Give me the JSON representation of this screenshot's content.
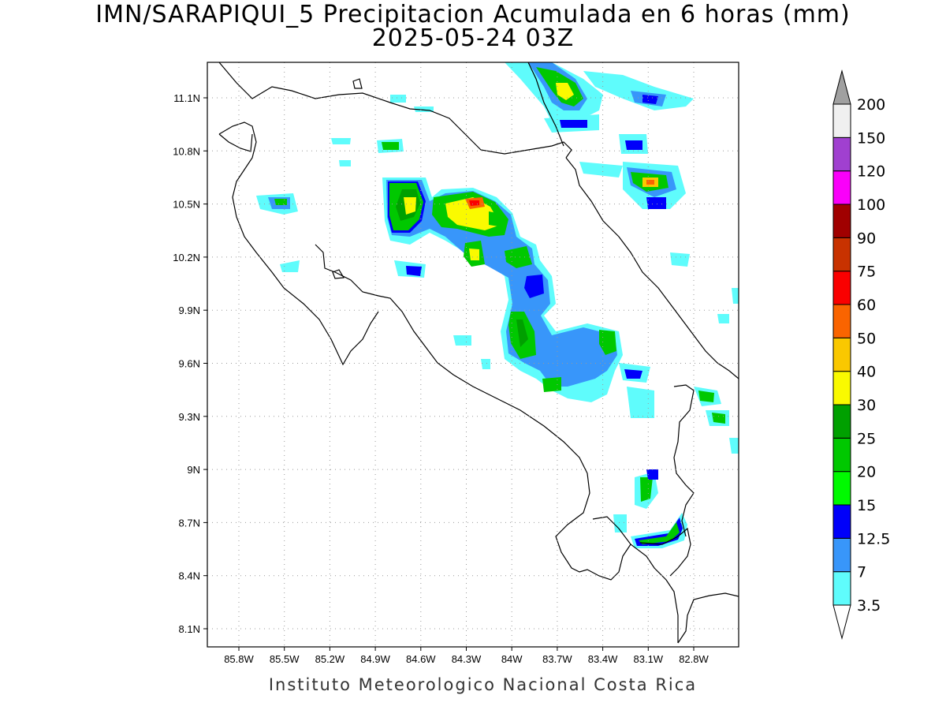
{
  "title": {
    "line1": "IMN/SARAPIQUI_5 Precipitacion Acumulada en 6 horas (mm)",
    "line2": "2025-05-24 03Z"
  },
  "footer": "Instituto Meteorologico Nacional Costa Rica",
  "axes": {
    "lat_ticks": [
      "11.1N",
      "10.8N",
      "10.5N",
      "10.2N",
      "9.9N",
      "9.6N",
      "9.3N",
      "9N",
      "8.7N",
      "8.4N",
      "8.1N"
    ],
    "lon_ticks": [
      "85.8W",
      "85.5W",
      "85.2W",
      "84.9W",
      "84.6W",
      "84.3W",
      "84W",
      "83.7W",
      "83.4W",
      "83.1W",
      "82.8W"
    ],
    "grid": "dotted"
  },
  "colorbar": {
    "levels": [
      "3.5",
      "7",
      "12.5",
      "15",
      "20",
      "25",
      "30",
      "40",
      "50",
      "60",
      "75",
      "90",
      "100",
      "120",
      "150",
      "200"
    ],
    "colors": [
      "#5ffcfc",
      "#3896fa",
      "#0000fa",
      "#00fa00",
      "#00c800",
      "#00a000",
      "#fafa00",
      "#fac800",
      "#fa6400",
      "#fa0000",
      "#c83200",
      "#a00000",
      "#fa00fa",
      "#a040d0",
      "#f0f0f0"
    ],
    "overflow_color": "#a0a0a0"
  }
}
